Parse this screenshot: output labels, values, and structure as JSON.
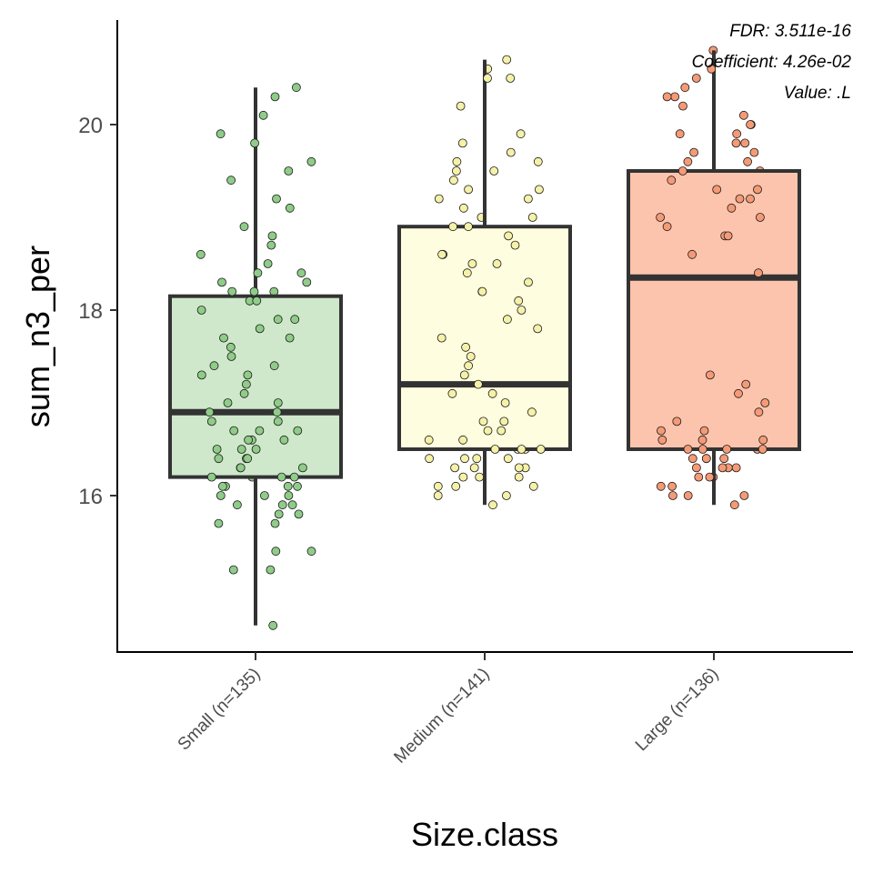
{
  "chart_data": {
    "type": "boxplot",
    "xlabel": "Size.class",
    "ylabel": "sum_n3_per",
    "ylim": [
      14.2,
      21.2
    ],
    "yticks": [
      16,
      18,
      20
    ],
    "grid": false,
    "annotations": [
      "FDR: 3.511e-16",
      "Coefficient: 4.26e-02",
      "Value: .L"
    ],
    "annotation_placement": "top-right",
    "categories": [
      "Small (n=135)",
      "Medium (n=141)",
      "Large (n=136)"
    ],
    "boxes": [
      {
        "category": "Small (n=135)",
        "min": 14.6,
        "q1": 16.2,
        "median": 16.9,
        "q3": 18.15,
        "max": 20.4,
        "fill": "#cfe8cb",
        "point_color": "#8fcc88",
        "points": [
          14.6,
          15.2,
          15.2,
          15.4,
          15.4,
          15.7,
          15.7,
          15.8,
          15.8,
          15.9,
          15.9,
          15.9,
          16.0,
          16.0,
          16.0,
          16.1,
          16.1,
          16.1,
          16.1,
          16.2,
          16.2,
          16.2,
          16.2,
          16.3,
          16.3,
          16.3,
          16.3,
          16.3,
          16.4,
          16.4,
          16.4,
          16.4,
          16.5,
          16.5,
          16.5,
          16.5,
          16.5,
          16.6,
          16.6,
          16.6,
          16.6,
          16.7,
          16.7,
          16.7,
          16.7,
          16.8,
          16.8,
          16.8,
          16.9,
          16.9,
          16.9,
          17.0,
          17.0,
          17.0,
          17.1,
          17.1,
          17.2,
          17.2,
          17.3,
          17.3,
          17.3,
          17.4,
          17.4,
          17.5,
          17.5,
          17.6,
          17.6,
          17.7,
          17.7,
          17.8,
          17.8,
          17.9,
          17.9,
          17.9,
          18.0,
          18.0,
          18.1,
          18.1,
          18.2,
          18.2,
          18.2,
          18.3,
          18.3,
          18.4,
          18.4,
          18.5,
          18.6,
          18.7,
          18.8,
          18.9,
          19.1,
          19.2,
          19.4,
          19.5,
          19.6,
          19.8,
          19.9,
          20.1,
          20.3,
          20.4
        ]
      },
      {
        "category": "Medium (n=141)",
        "min": 15.9,
        "q1": 16.5,
        "median": 17.2,
        "q3": 18.9,
        "max": 20.7,
        "fill": "#fefde0",
        "point_color": "#f5f1a8",
        "points": [
          15.9,
          16.0,
          16.0,
          16.1,
          16.1,
          16.1,
          16.2,
          16.2,
          16.2,
          16.3,
          16.3,
          16.3,
          16.3,
          16.4,
          16.4,
          16.4,
          16.4,
          16.5,
          16.5,
          16.5,
          16.5,
          16.5,
          16.6,
          16.6,
          16.6,
          16.7,
          16.7,
          16.7,
          16.8,
          16.8,
          16.9,
          16.9,
          17.0,
          17.0,
          17.1,
          17.1,
          17.2,
          17.2,
          17.3,
          17.3,
          17.4,
          17.5,
          17.5,
          17.6,
          17.7,
          17.7,
          17.8,
          17.9,
          18.0,
          18.0,
          18.1,
          18.1,
          18.2,
          18.2,
          18.3,
          18.3,
          18.4,
          18.4,
          18.5,
          18.5,
          18.5,
          18.6,
          18.6,
          18.7,
          18.7,
          18.8,
          18.8,
          18.9,
          18.9,
          19.0,
          19.0,
          19.1,
          19.2,
          19.2,
          19.3,
          19.3,
          19.4,
          19.5,
          19.5,
          19.6,
          19.6,
          19.7,
          19.8,
          19.9,
          20.2,
          20.5,
          20.5,
          20.6,
          20.7
        ]
      },
      {
        "category": "Large (n=136)",
        "min": 15.9,
        "q1": 16.5,
        "median": 18.35,
        "q3": 19.5,
        "max": 20.8,
        "fill": "#fcc4ad",
        "point_color": "#f59a76",
        "points": [
          15.9,
          16.0,
          16.0,
          16.0,
          16.1,
          16.1,
          16.2,
          16.2,
          16.2,
          16.3,
          16.3,
          16.3,
          16.3,
          16.4,
          16.4,
          16.4,
          16.4,
          16.5,
          16.5,
          16.5,
          16.5,
          16.5,
          16.5,
          16.6,
          16.6,
          16.6,
          16.6,
          16.7,
          16.7,
          16.7,
          16.8,
          16.8,
          16.9,
          17.0,
          17.0,
          17.1,
          17.2,
          17.2,
          17.3,
          18.3,
          18.4,
          18.6,
          18.7,
          18.8,
          18.8,
          18.9,
          18.9,
          19.0,
          19.0,
          19.0,
          19.1,
          19.1,
          19.2,
          19.2,
          19.3,
          19.3,
          19.3,
          19.4,
          19.4,
          19.5,
          19.5,
          19.6,
          19.6,
          19.7,
          19.7,
          19.8,
          19.8,
          19.9,
          19.9,
          20.0,
          20.0,
          20.1,
          20.2,
          20.3,
          20.3,
          20.4,
          20.5,
          20.6,
          20.8
        ]
      }
    ]
  }
}
